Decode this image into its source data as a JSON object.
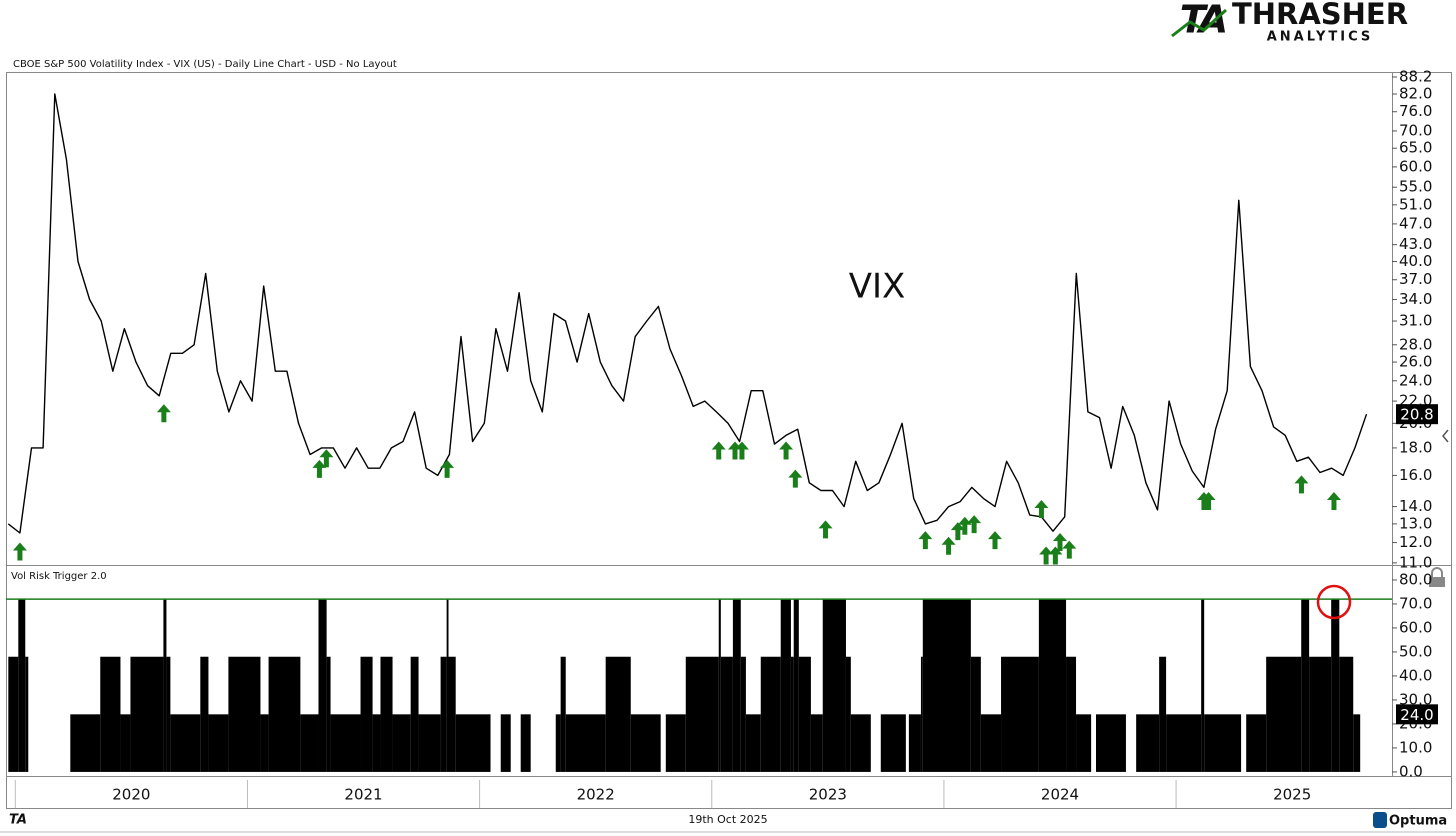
{
  "logo": {
    "brand": "THRASHER",
    "sub": "ANALYTICS",
    "mark": "TA"
  },
  "footer_date": "19th Oct 2025",
  "footer_brand": "Optuma",
  "chart_data": [
    {
      "type": "line",
      "title": "CBOE S&P 500 Volatility Index - VIX (US) - Daily Line Chart - USD - No Layout",
      "annotation": "VIX",
      "color": "#000000",
      "log_scale": true,
      "x": [
        2019.97,
        2020.02,
        2020.07,
        2020.12,
        2020.17,
        2020.22,
        2020.27,
        2020.32,
        2020.37,
        2020.42,
        2020.47,
        2020.52,
        2020.57,
        2020.62,
        2020.67,
        2020.72,
        2020.77,
        2020.82,
        2020.87,
        2020.92,
        2020.97,
        2021.02,
        2021.07,
        2021.12,
        2021.17,
        2021.22,
        2021.27,
        2021.32,
        2021.37,
        2021.42,
        2021.47,
        2021.52,
        2021.57,
        2021.62,
        2021.67,
        2021.72,
        2021.77,
        2021.82,
        2021.87,
        2021.92,
        2021.97,
        2022.02,
        2022.07,
        2022.12,
        2022.17,
        2022.22,
        2022.27,
        2022.32,
        2022.37,
        2022.42,
        2022.47,
        2022.52,
        2022.57,
        2022.62,
        2022.67,
        2022.72,
        2022.77,
        2022.82,
        2022.87,
        2022.92,
        2022.97,
        2023.02,
        2023.07,
        2023.12,
        2023.17,
        2023.22,
        2023.27,
        2023.32,
        2023.37,
        2023.42,
        2023.47,
        2023.52,
        2023.57,
        2023.62,
        2023.67,
        2023.72,
        2023.77,
        2023.82,
        2023.87,
        2023.92,
        2023.97,
        2024.02,
        2024.07,
        2024.12,
        2024.17,
        2024.22,
        2024.27,
        2024.32,
        2024.37,
        2024.42,
        2024.47,
        2024.52,
        2024.57,
        2024.62,
        2024.67,
        2024.72,
        2024.77,
        2024.82,
        2024.87,
        2024.92,
        2024.97,
        2025.02,
        2025.07,
        2025.12,
        2025.17,
        2025.22,
        2025.27,
        2025.32,
        2025.37,
        2025.42,
        2025.47,
        2025.52,
        2025.57,
        2025.62,
        2025.67,
        2025.72,
        2025.77,
        2025.82
      ],
      "values": [
        13,
        12.5,
        18,
        18,
        82,
        62,
        40,
        34,
        31,
        25,
        30,
        26,
        23.5,
        22.5,
        27,
        27,
        28,
        38,
        25,
        21,
        24,
        22,
        36,
        25,
        25,
        20,
        17.5,
        18,
        18,
        16.5,
        18,
        16.5,
        16.5,
        18,
        18.5,
        21,
        16.5,
        16,
        17.5,
        29,
        18.5,
        20,
        30,
        25,
        35,
        24,
        21,
        32,
        31,
        26,
        32,
        26,
        23.5,
        22,
        29,
        31,
        33,
        27.5,
        24.5,
        21.5,
        22,
        21,
        20,
        18.5,
        23,
        23,
        18.3,
        19,
        19.5,
        15.5,
        15,
        15,
        14,
        17,
        15,
        15.5,
        17.5,
        20,
        14.5,
        13,
        13.2,
        14,
        14.3,
        15.2,
        14.5,
        14,
        17,
        15.5,
        13.5,
        13.4,
        12.6,
        13.4,
        38,
        21,
        20.5,
        16.5,
        21.5,
        19,
        15.5,
        13.8,
        22,
        18.3,
        16.3,
        15.2,
        19.5,
        23,
        52,
        25.5,
        23,
        19.7,
        19,
        17,
        17.3,
        16.2,
        16.5,
        16,
        18,
        20.8
      ],
      "xlim": [
        2019.96,
        2025.93
      ],
      "ylim": [
        10.9,
        90.1
      ],
      "yticks": [
        88.2,
        {
          "value": 82,
          "label": "82.0"
        },
        {
          "value": 76,
          "label": "76.0"
        },
        {
          "value": 70,
          "label": "70.0"
        },
        {
          "value": 65,
          "label": "65.0"
        },
        {
          "value": 60,
          "label": "60.0"
        },
        {
          "value": 55,
          "label": "55.0"
        },
        {
          "value": 51,
          "label": "51.0"
        },
        {
          "value": 47,
          "label": "47.0"
        },
        {
          "value": 43,
          "label": "43.0"
        },
        {
          "value": 40,
          "label": "40.0"
        },
        {
          "value": 37,
          "label": "37.0"
        },
        {
          "value": 34,
          "label": "34.0"
        },
        {
          "value": 31,
          "label": "31.0"
        },
        {
          "value": 28,
          "label": "28.0"
        },
        {
          "value": 26,
          "label": "26.0"
        },
        {
          "value": 24,
          "label": "24.0"
        },
        {
          "value": 22,
          "label": "22.0"
        },
        {
          "value": 20,
          "label": "20.0"
        },
        {
          "value": 18,
          "label": "18.0"
        },
        {
          "value": 16,
          "label": "16.0"
        },
        {
          "value": 14,
          "label": "14.0"
        },
        {
          "value": 13,
          "label": "13.0"
        },
        {
          "value": 12,
          "label": "12.0"
        },
        {
          "value": 11,
          "label": "11.0"
        }
      ],
      "signals": {
        "color": "#1a7f1a",
        "x": [
          2020.02,
          2020.64,
          2021.31,
          2021.34,
          2021.86,
          2023.03,
          2023.1,
          2023.13,
          2023.32,
          2023.36,
          2023.49,
          2023.92,
          2024.02,
          2024.06,
          2024.09,
          2024.13,
          2024.22,
          2024.42,
          2024.44,
          2024.48,
          2024.5,
          2024.54,
          2025.12,
          2025.14,
          2025.54,
          2025.68
        ],
        "values": [
          12.0,
          21.7,
          17.1,
          17.9,
          17.1,
          18.5,
          18.5,
          18.5,
          18.5,
          16.4,
          13.2,
          12.6,
          12.3,
          13.1,
          13.4,
          13.5,
          12.6,
          14.4,
          11.8,
          11.8,
          12.5,
          12.1,
          14.9,
          14.9,
          16.0,
          14.9
        ]
      }
    },
    {
      "type": "step",
      "title": "Vol Risk Trigger 2.0",
      "color": "#000000",
      "x": [
        2019.97,
        2020.013,
        2020.043,
        2020.056,
        2020.237,
        2020.366,
        2020.453,
        2020.496,
        2020.638,
        2020.651,
        2020.668,
        2020.797,
        2020.832,
        2020.918,
        2021.056,
        2021.091,
        2021.228,
        2021.306,
        2021.341,
        2021.358,
        2021.487,
        2021.539,
        2021.573,
        2021.625,
        2021.703,
        2021.737,
        2021.832,
        2021.858,
        2021.866,
        2021.897,
        2022.047,
        2022.091,
        2022.134,
        2022.177,
        2022.22,
        2022.328,
        2022.349,
        2022.371,
        2022.543,
        2022.651,
        2022.78,
        2022.802,
        2022.888,
        2023.03,
        2023.039,
        2023.091,
        2023.125,
        2023.147,
        2023.211,
        2023.297,
        2023.341,
        2023.353,
        2023.375,
        2023.427,
        2023.478,
        2023.578,
        2023.599,
        2023.685,
        2023.728,
        2023.836,
        2023.849,
        2023.901,
        2023.909,
        2024.116,
        2024.159,
        2024.246,
        2024.409,
        2024.526,
        2024.569,
        2024.634,
        2024.655,
        2024.784,
        2024.828,
        2024.927,
        2024.957,
        2025.108,
        2025.121,
        2025.28,
        2025.302,
        2025.388,
        2025.539,
        2025.573,
        2025.668,
        2025.703,
        2025.763,
        2025.793
      ],
      "values": [
        48,
        72,
        48,
        0,
        24,
        48,
        24,
        48,
        72,
        48,
        24,
        48,
        24,
        48,
        24,
        48,
        24,
        72,
        48,
        24,
        48,
        24,
        48,
        24,
        48,
        24,
        48,
        72,
        48,
        24,
        0,
        24,
        0,
        24,
        0,
        24,
        48,
        24,
        48,
        24,
        0,
        24,
        48,
        72,
        48,
        72,
        48,
        24,
        48,
        72,
        48,
        72,
        48,
        24,
        72,
        48,
        24,
        0,
        24,
        0,
        24,
        48,
        72,
        48,
        24,
        48,
        72,
        48,
        24,
        0,
        24,
        0,
        24,
        48,
        24,
        72,
        24,
        0,
        24,
        48,
        72,
        48,
        72,
        48,
        24,
        24
      ],
      "last_label": "24.0",
      "threshold": {
        "value": 72,
        "color": "#1a7f1a"
      },
      "xlim": [
        2019.96,
        2025.93
      ],
      "ylim": [
        -1.7,
        85.4
      ],
      "yticks": [
        {
          "value": 0,
          "label": "0.0"
        },
        {
          "value": 10,
          "label": "10.0"
        },
        {
          "value": 20,
          "label": "20.0"
        },
        {
          "value": 30,
          "label": "30.0"
        },
        {
          "value": 40,
          "label": "40.0"
        },
        {
          "value": 50,
          "label": "50.0"
        },
        {
          "value": 60,
          "label": "60.0"
        },
        {
          "value": 70,
          "label": "70.0"
        },
        {
          "value": 80,
          "label": "80.0"
        }
      ],
      "xticks": [
        {
          "value": 2020.5,
          "label": "2020"
        },
        {
          "value": 2021.5,
          "label": "2021"
        },
        {
          "value": 2022.5,
          "label": "2022"
        },
        {
          "value": 2023.5,
          "label": "2023"
        },
        {
          "value": 2024.5,
          "label": "2024"
        },
        {
          "value": 2025.5,
          "label": "2025"
        }
      ]
    }
  ]
}
